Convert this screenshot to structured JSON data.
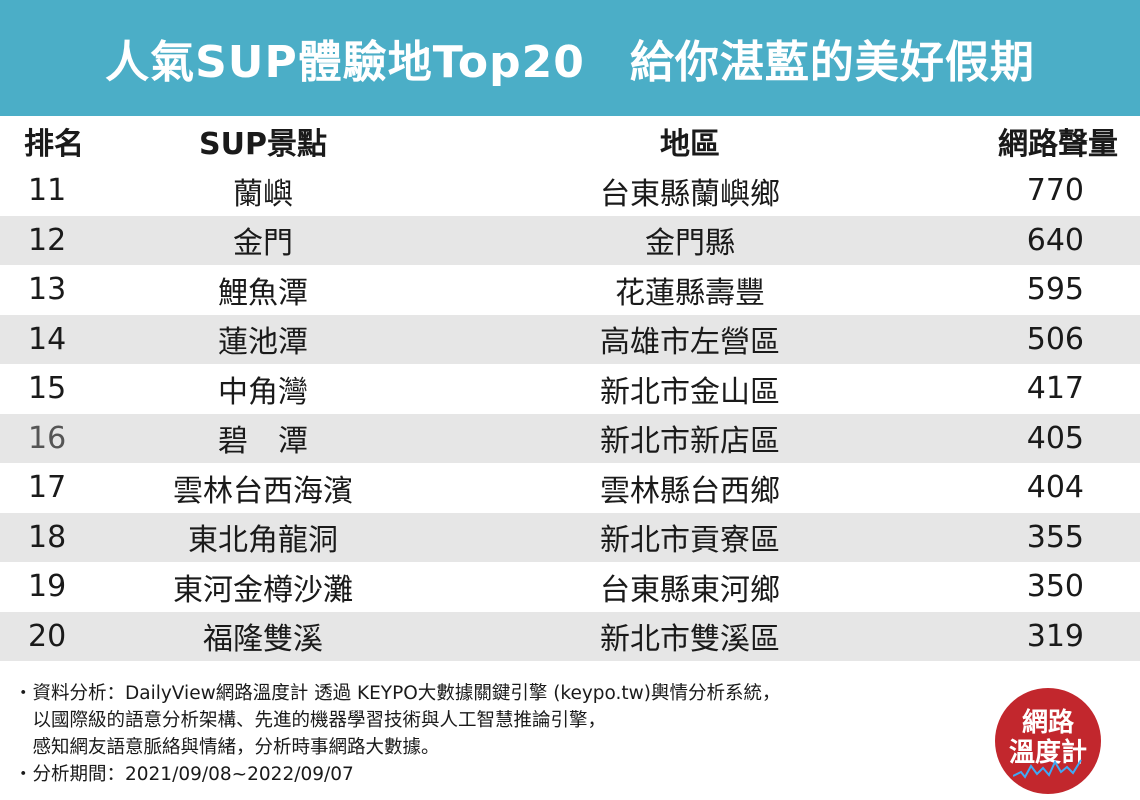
{
  "title": "人氣SUP體驗地Top20　給你湛藍的美好假期",
  "chart_data": {
    "type": "table",
    "columns": [
      "排名",
      "SUP景點",
      "地區",
      "網路聲量"
    ],
    "rows": [
      [
        "11",
        "蘭嶼",
        "台東縣蘭嶼鄉",
        "770"
      ],
      [
        "12",
        "金門",
        "金門縣",
        "640"
      ],
      [
        "13",
        "鯉魚潭",
        "花蓮縣壽豐",
        "595"
      ],
      [
        "14",
        "蓮池潭",
        "高雄市左營區",
        "506"
      ],
      [
        "15",
        "中角灣",
        "新北市金山區",
        "417"
      ],
      [
        "16",
        "碧　潭",
        "新北市新店區",
        "405"
      ],
      [
        "17",
        "雲林台西海濱",
        "雲林縣台西鄉",
        "404"
      ],
      [
        "18",
        "東北角龍洞",
        "新北市貢寮區",
        "355"
      ],
      [
        "19",
        "東河金樽沙灘",
        "台東縣東河鄉",
        "350"
      ],
      [
        "20",
        "福隆雙溪",
        "新北市雙溪區",
        "319"
      ]
    ]
  },
  "footer": {
    "line1": "・資料分析：DailyView網路溫度計 透過 KEYPO大數據關鍵引擎 (keypo.tw)輿情分析系統，",
    "line2": "　以國際級的語意分析架構、先進的機器學習技術與人工智慧推論引擎，",
    "line3": "　感知網友語意脈絡與情緒，分析時事網路大數據。",
    "line4": "・分析期間：2021/09/08~2022/09/07"
  },
  "logo": {
    "line1": "網路",
    "line2": "溫度計"
  },
  "colors": {
    "header_bg": "#4baec7",
    "stripe": "#e6e6e6",
    "logo_bg": "#c2272d"
  }
}
